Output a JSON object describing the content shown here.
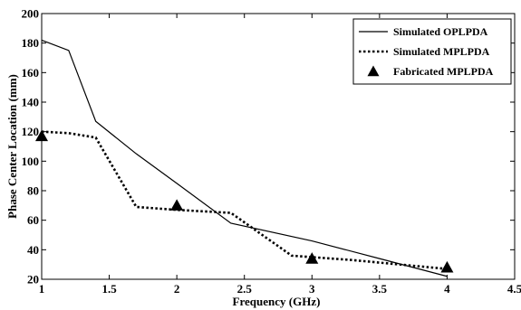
{
  "chart_data": {
    "type": "line",
    "xlabel": "Frequency (GHz)",
    "ylabel": "Phase Center Location (mm)",
    "xlim": [
      1,
      4.5
    ],
    "ylim": [
      20,
      200
    ],
    "xticks": [
      1,
      1.5,
      2,
      2.5,
      3,
      3.5,
      4,
      4.5
    ],
    "xtick_labels": [
      "1",
      "1.5",
      "2",
      "2.5",
      "3",
      "3.5",
      "4",
      "4.5"
    ],
    "yticks": [
      20,
      40,
      60,
      80,
      100,
      120,
      140,
      160,
      180,
      200
    ],
    "ytick_labels": [
      "20",
      "40",
      "60",
      "80",
      "100",
      "120",
      "140",
      "160",
      "180",
      "200"
    ],
    "grid": false,
    "legend_position": "top-right",
    "series": [
      {
        "name": "Simulated OPLPDA",
        "style": "solid",
        "color": "#000000",
        "x": [
          1.0,
          1.2,
          1.4,
          1.7,
          2.0,
          2.4,
          3.0,
          3.5,
          4.0
        ],
        "y": [
          182,
          175,
          127,
          105,
          85,
          58,
          46,
          34,
          22
        ]
      },
      {
        "name": "Simulated MPLPDA",
        "style": "dotted",
        "color": "#000000",
        "x": [
          1.0,
          1.2,
          1.4,
          1.7,
          2.0,
          2.4,
          2.85,
          3.3,
          4.0
        ],
        "y": [
          120,
          119,
          116,
          69,
          67,
          65,
          36,
          33,
          27
        ]
      },
      {
        "name": "Fabricated MPLPDA",
        "style": "marker",
        "marker": "triangle",
        "color": "#000000",
        "x": [
          1.0,
          2.0,
          3.0,
          4.0
        ],
        "y": [
          117,
          70,
          34,
          28
        ]
      }
    ]
  }
}
